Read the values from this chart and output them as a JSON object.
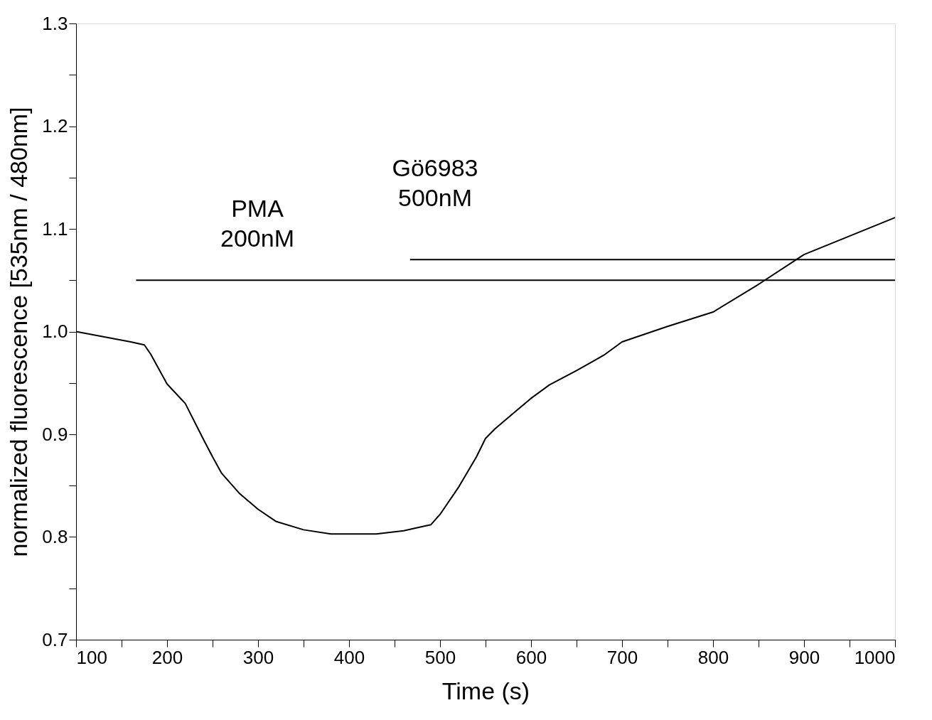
{
  "chart_data": {
    "type": "line",
    "xlabel": "Time (s)",
    "ylabel": "normalized fluorescence [535nm / 480nm]",
    "xlim": [
      100,
      1000
    ],
    "ylim": [
      0.7,
      1.3
    ],
    "xticks": [
      100,
      {
        "value": 150,
        "label": null
      },
      200,
      {
        "value": 250,
        "label": null
      },
      300,
      {
        "value": 350,
        "label": null
      },
      400,
      {
        "value": 450,
        "label": null
      },
      500,
      {
        "value": 550,
        "label": null
      },
      600,
      {
        "value": 650,
        "label": null
      },
      700,
      {
        "value": 750,
        "label": null
      },
      800,
      {
        "value": 850,
        "label": null
      },
      900,
      {
        "value": 950,
        "label": null
      },
      1000
    ],
    "yticks": [
      {
        "value": 0.7,
        "label": "0.7"
      },
      {
        "value": 0.75,
        "label": null
      },
      {
        "value": 0.8,
        "label": "0.8"
      },
      {
        "value": 0.85,
        "label": null
      },
      {
        "value": 0.9,
        "label": "0.9"
      },
      {
        "value": 0.95,
        "label": null
      },
      {
        "value": 1.0,
        "label": "1.0"
      },
      {
        "value": 1.05,
        "label": null
      },
      {
        "value": 1.1,
        "label": "1.1"
      },
      {
        "value": 1.15,
        "label": null
      },
      {
        "value": 1.2,
        "label": "1.2"
      },
      {
        "value": 1.25,
        "label": null
      },
      {
        "value": 1.3,
        "label": "1.3"
      }
    ],
    "grid": false,
    "series": [
      {
        "color": "#000000",
        "x": [
          100,
          130,
          160,
          175,
          182,
          200,
          220,
          240,
          250,
          260,
          280,
          300,
          320,
          350,
          380,
          400,
          430,
          460,
          480,
          490,
          500,
          520,
          540,
          550,
          560,
          580,
          600,
          620,
          650,
          680,
          700,
          750,
          800,
          850,
          900,
          950,
          1000
        ],
        "values": [
          1.0,
          0.995,
          0.99,
          0.987,
          0.978,
          0.949,
          0.93,
          0.895,
          0.878,
          0.862,
          0.842,
          0.827,
          0.815,
          0.807,
          0.803,
          0.803,
          0.803,
          0.806,
          0.81,
          0.812,
          0.822,
          0.848,
          0.878,
          0.896,
          0.905,
          0.92,
          0.935,
          0.948,
          0.962,
          0.977,
          0.99,
          1.005,
          1.019,
          1.046,
          1.075,
          1.093,
          1.111
        ]
      },
      {
        "color": "#000000",
        "x": [
          166,
          1000
        ],
        "values": [
          1.05,
          1.05
        ]
      },
      {
        "color": "#000000",
        "x": [
          467,
          1000
        ],
        "values": [
          1.07,
          1.07
        ]
      }
    ],
    "annotations": [
      "PMA\n200nM",
      "Gö6983\n500nM"
    ]
  }
}
